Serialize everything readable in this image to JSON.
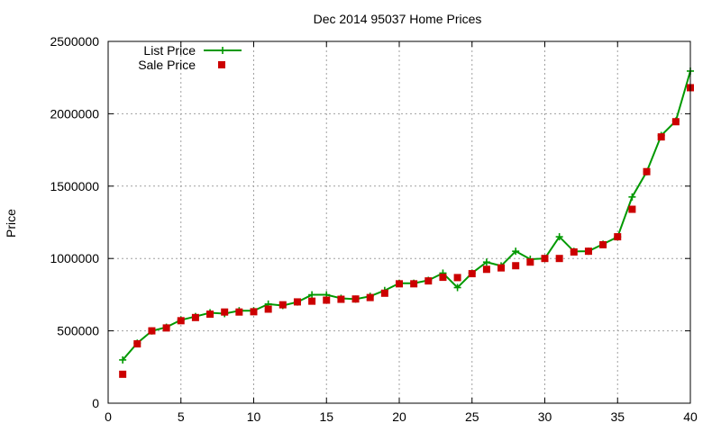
{
  "chart_data": {
    "type": "line",
    "title": "Dec 2014 95037 Home Prices",
    "xlabel": "",
    "ylabel": "Price",
    "xlim": [
      0,
      40
    ],
    "ylim": [
      0,
      2500000
    ],
    "x_ticks": [
      0,
      5,
      10,
      15,
      20,
      25,
      30,
      35,
      40
    ],
    "y_ticks": [
      0,
      500000,
      1000000,
      1500000,
      2000000,
      2500000
    ],
    "x_tick_labels": [
      "0",
      "5",
      "10",
      "15",
      "20",
      "25",
      "30",
      "35",
      "40"
    ],
    "y_tick_labels": [
      "0",
      "500000",
      "1000000",
      "1500000",
      "2000000",
      "2500000"
    ],
    "grid": true,
    "legend_position": "top-left",
    "x": [
      1,
      2,
      3,
      4,
      5,
      6,
      7,
      8,
      9,
      10,
      11,
      12,
      13,
      14,
      15,
      16,
      17,
      18,
      19,
      20,
      21,
      22,
      23,
      24,
      25,
      26,
      27,
      28,
      29,
      30,
      31,
      32,
      33,
      34,
      35,
      36,
      37,
      38,
      39,
      40
    ],
    "series": [
      {
        "name": "List Price",
        "style": "linespoints",
        "marker": "plus",
        "color": "#009900",
        "values": [
          299000,
          415000,
          499000,
          525000,
          575000,
          599000,
          625000,
          619000,
          639000,
          639000,
          685000,
          675000,
          699000,
          749000,
          749000,
          725000,
          719000,
          739000,
          779000,
          829000,
          829000,
          849000,
          899000,
          799000,
          899000,
          975000,
          949000,
          1050000,
          995000,
          1000000,
          1150000,
          1049000,
          1050000,
          1099000,
          1149000,
          1425000,
          1599000,
          1850000,
          1950000,
          2295000
        ]
      },
      {
        "name": "Sale Price",
        "style": "points",
        "marker": "square",
        "color": "#cc0000",
        "values": [
          200000,
          410000,
          500000,
          520000,
          570000,
          592000,
          615000,
          630000,
          630000,
          632000,
          650000,
          680000,
          700000,
          705000,
          712000,
          718000,
          720000,
          730000,
          760000,
          825000,
          825000,
          845000,
          870000,
          868000,
          895000,
          925000,
          935000,
          950000,
          975000,
          1000000,
          1000000,
          1045000,
          1050000,
          1095000,
          1150000,
          1340000,
          1600000,
          1840000,
          1945000,
          2180000
        ]
      }
    ]
  }
}
